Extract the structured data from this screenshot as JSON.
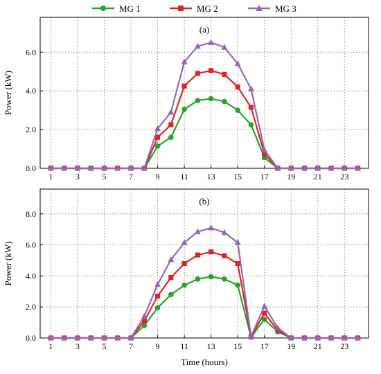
{
  "legend": [
    "MG 1",
    "MG 2",
    "MG 3"
  ],
  "colors": {
    "MG 1": "#2ca02c",
    "MG 2": "#d62728",
    "MG 3": "#9467bd"
  },
  "markers": {
    "MG 1": "circle",
    "MG 2": "square",
    "MG 3": "triangle"
  },
  "chart_data": [
    {
      "type": "line",
      "panel_label": "(a)",
      "xlabel": "",
      "ylabel": "Power (kW)",
      "x": [
        1,
        2,
        3,
        4,
        5,
        6,
        7,
        8,
        9,
        10,
        11,
        12,
        13,
        14,
        15,
        16,
        17,
        18,
        19,
        20,
        21,
        22,
        23,
        24
      ],
      "xticks": [
        "1",
        "3",
        "5",
        "7",
        "9",
        "11",
        "13",
        "15",
        "17",
        "19",
        "21",
        "23"
      ],
      "xlim": [
        0.2,
        24.8
      ],
      "ylim": [
        0,
        7.8
      ],
      "yticks": [
        "0.0",
        "2.0",
        "4.0",
        "6.0"
      ],
      "grid": true,
      "series": [
        {
          "name": "MG 1",
          "values": [
            0,
            0,
            0,
            0,
            0,
            0,
            0,
            0,
            1.15,
            1.6,
            3.05,
            3.5,
            3.6,
            3.45,
            3.0,
            2.25,
            0.55,
            0,
            0,
            0,
            0,
            0,
            0,
            0
          ]
        },
        {
          "name": "MG 2",
          "values": [
            0,
            0,
            0,
            0,
            0,
            0,
            0,
            0,
            1.6,
            2.25,
            4.25,
            4.9,
            5.05,
            4.85,
            4.2,
            3.15,
            0.75,
            0,
            0,
            0,
            0,
            0,
            0,
            0
          ]
        },
        {
          "name": "MG 3",
          "values": [
            0,
            0,
            0,
            0,
            0,
            0,
            0,
            0,
            2.05,
            2.9,
            5.5,
            6.3,
            6.5,
            6.25,
            5.4,
            4.1,
            0.95,
            0,
            0,
            0,
            0,
            0,
            0,
            0
          ]
        }
      ]
    },
    {
      "type": "line",
      "panel_label": "(b)",
      "xlabel": "Time (hours)",
      "ylabel": "Power (kW)",
      "x": [
        1,
        2,
        3,
        4,
        5,
        6,
        7,
        8,
        9,
        10,
        11,
        12,
        13,
        14,
        15,
        16,
        17,
        18,
        19,
        20,
        21,
        22,
        23,
        24
      ],
      "xticks": [
        "1",
        "3",
        "5",
        "7",
        "9",
        "11",
        "13",
        "15",
        "17",
        "19",
        "21",
        "23"
      ],
      "xlim": [
        0.2,
        24.8
      ],
      "ylim": [
        0,
        9.6
      ],
      "yticks": [
        "0.0",
        "2.0",
        "4.0",
        "6.0",
        "8.0"
      ],
      "grid": true,
      "series": [
        {
          "name": "MG 1",
          "values": [
            0,
            0,
            0,
            0,
            0,
            0,
            0,
            0.8,
            1.95,
            2.8,
            3.4,
            3.8,
            3.95,
            3.8,
            3.4,
            0.05,
            1.2,
            0.4,
            0,
            0,
            0,
            0,
            0,
            0
          ]
        },
        {
          "name": "MG 2",
          "values": [
            0,
            0,
            0,
            0,
            0,
            0,
            0,
            1.1,
            2.7,
            3.9,
            4.8,
            5.35,
            5.55,
            5.3,
            4.8,
            0.08,
            1.6,
            0.5,
            0,
            0,
            0,
            0,
            0,
            0
          ]
        },
        {
          "name": "MG 3",
          "values": [
            0,
            0,
            0,
            0,
            0,
            0,
            0,
            1.4,
            3.45,
            5.05,
            6.15,
            6.85,
            7.1,
            6.8,
            6.15,
            0.1,
            2.05,
            0.65,
            0,
            0,
            0,
            0,
            0,
            0
          ]
        }
      ]
    }
  ]
}
